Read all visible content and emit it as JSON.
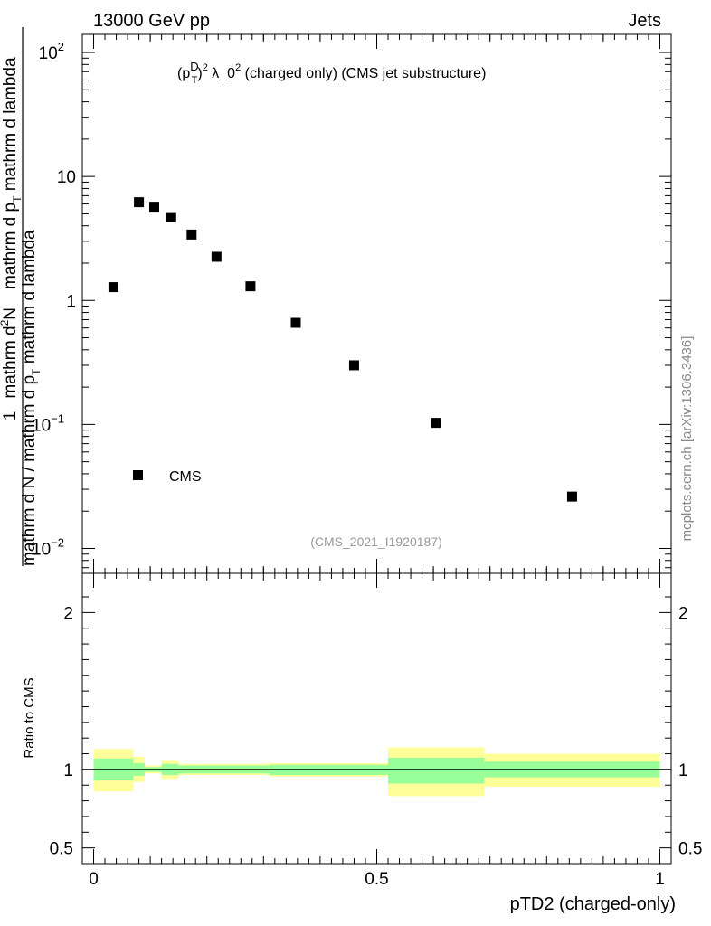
{
  "header": {
    "left": "13000 GeV pp",
    "right": "Jets"
  },
  "side_label": "mcplots.cern.ch [arXiv:1306.3436]",
  "colors": {
    "data_marker": "#000000",
    "band_inner": "#99ff99",
    "band_outer": "#ffff99",
    "reference_line": "#000000"
  },
  "chart_data": [
    {
      "type": "scatter",
      "title": "(p_T^D)^2 λ_0^2 (charged only) (CMS jet substructure)",
      "title_parts": {
        "p": "(p",
        "sup_D": "D",
        "sub_T": "T",
        "close": ")",
        "sq": "2",
        "lam": " λ_0",
        "sq2": "2",
        "rest": " (charged only) (CMS jet substructure)"
      },
      "ylabel_parts": {
        "num_pre": "1",
        "den_main": "mathrm d N / mathrm d p",
        "den_sub": "T",
        "den_tail": " mathrm d lambda"
      },
      "ylabel_numerator": "mathrm d²N",
      "ylabel_numerator_parts": {
        "a": "mathrm d",
        "sup": "2",
        "b": "N"
      },
      "ylabel_full_parts": {
        "top": "mathrm d N / mathrm d p_T mathrm d lambda",
        "inner": "mathrm d p_T mathrm d lambda"
      },
      "yscale": "log",
      "ylim": [
        0.0063,
        140
      ],
      "xlim": [
        -0.02,
        1.02
      ],
      "y_ticks": [
        {
          "value": 0.01,
          "label": "10",
          "exp": "−2"
        },
        {
          "value": 0.1,
          "label": "10",
          "exp": "−1"
        },
        {
          "value": 1,
          "label": "1",
          "exp": ""
        },
        {
          "value": 10,
          "label": "10",
          "exp": ""
        },
        {
          "value": 100,
          "label": "10",
          "exp": "2"
        }
      ],
      "legend": {
        "position": "bottom-left",
        "entry": "CMS"
      },
      "watermark": "(CMS_2021_I1920187)",
      "series": [
        {
          "name": "CMS",
          "x": [
            0.035,
            0.08,
            0.107,
            0.137,
            0.173,
            0.217,
            0.277,
            0.357,
            0.46,
            0.605,
            0.845
          ],
          "y": [
            1.28,
            6.2,
            5.7,
            4.7,
            3.4,
            2.25,
            1.3,
            0.66,
            0.3,
            0.103,
            0.0262
          ]
        }
      ]
    },
    {
      "type": "area",
      "ylabel": "Ratio to CMS",
      "xlabel": "pTD2 (charged-only)",
      "xlim": [
        -0.02,
        1.02
      ],
      "ylim": [
        0.4,
        2.25
      ],
      "x_ticks": [
        {
          "value": 0,
          "label": "0"
        },
        {
          "value": 0.5,
          "label": "0.5"
        },
        {
          "value": 1,
          "label": "1"
        }
      ],
      "y_ticks": [
        {
          "value": 0.5,
          "label": "0.5"
        },
        {
          "value": 1,
          "label": "1"
        },
        {
          "value": 2,
          "label": "2"
        }
      ],
      "reference": 1,
      "bins": [
        {
          "lo": 0.0,
          "hi": 0.07,
          "inner": [
            0.93,
            1.07
          ],
          "outer": [
            0.86,
            1.13
          ]
        },
        {
          "lo": 0.07,
          "hi": 0.09,
          "inner": [
            0.96,
            1.04
          ],
          "outer": [
            0.92,
            1.08
          ]
        },
        {
          "lo": 0.09,
          "hi": 0.12,
          "inner": [
            0.985,
            1.015
          ],
          "outer": [
            0.975,
            1.025
          ]
        },
        {
          "lo": 0.12,
          "hi": 0.15,
          "inner": [
            0.965,
            1.035
          ],
          "outer": [
            0.94,
            1.06
          ]
        },
        {
          "lo": 0.15,
          "hi": 0.19,
          "inner": [
            0.975,
            1.025
          ],
          "outer": [
            0.965,
            1.035
          ]
        },
        {
          "lo": 0.19,
          "hi": 0.31,
          "inner": [
            0.975,
            1.025
          ],
          "outer": [
            0.965,
            1.035
          ]
        },
        {
          "lo": 0.31,
          "hi": 0.52,
          "inner": [
            0.965,
            1.03
          ],
          "outer": [
            0.955,
            1.04
          ]
        },
        {
          "lo": 0.52,
          "hi": 0.69,
          "inner": [
            0.91,
            1.075
          ],
          "outer": [
            0.83,
            1.14
          ]
        },
        {
          "lo": 0.69,
          "hi": 1.0,
          "inner": [
            0.95,
            1.05
          ],
          "outer": [
            0.89,
            1.1
          ]
        }
      ]
    }
  ]
}
